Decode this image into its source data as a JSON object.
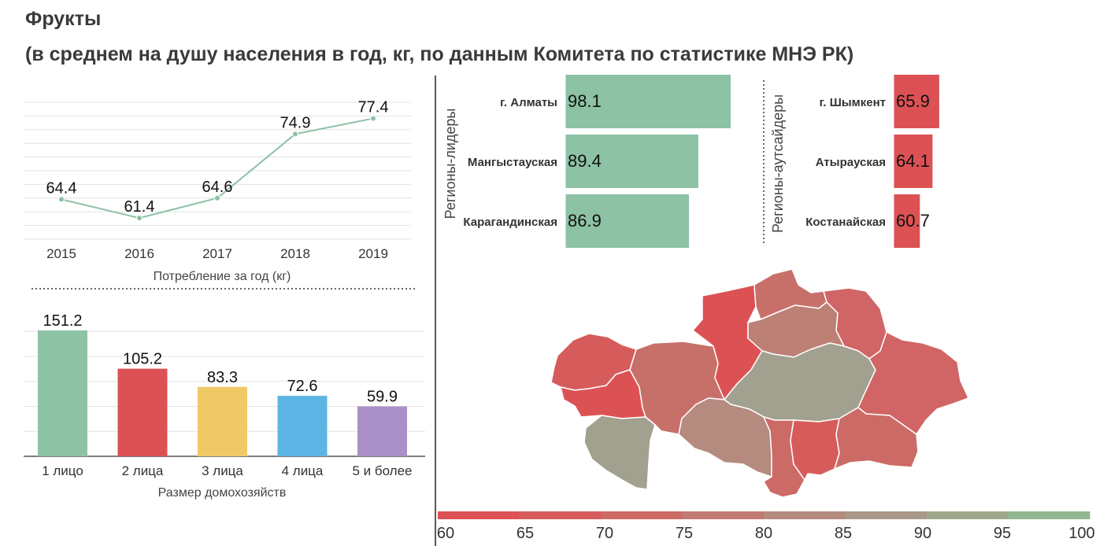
{
  "header": {
    "title": "Фрукты",
    "subtitle": "(в среднем на душу населения в год, кг, по данным Комитета по статистике МНЭ РК)"
  },
  "colors": {
    "green": "#8dc2a5",
    "red": "#dc5254",
    "yellow": "#efc966",
    "blue": "#5db5e5",
    "purple": "#a990c6",
    "line": "#8dc2a5",
    "map_gray": "#a2a08e"
  },
  "chart_data": [
    {
      "id": "yearly",
      "type": "line",
      "x": [
        "2015",
        "2016",
        "2017",
        "2018",
        "2019"
      ],
      "values": [
        64.4,
        61.4,
        64.6,
        74.9,
        77.4
      ],
      "labels": [
        "64.4",
        "61.4",
        "64.6",
        "74.9",
        "77.4"
      ],
      "xlabel": "Потребление за год (кг)",
      "ylim": [
        58,
        80
      ],
      "grid": true
    },
    {
      "id": "household",
      "type": "bar",
      "categories": [
        "1 лицо",
        "2 лица",
        "3 лица",
        "4 лица",
        "5 и более"
      ],
      "values": [
        151.2,
        105.2,
        83.3,
        72.6,
        59.9
      ],
      "labels": [
        "151.2",
        "105.2",
        "83.3",
        "72.6",
        "59.9"
      ],
      "colors": [
        "#8dc2a5",
        "#dc5254",
        "#efc966",
        "#5db5e5",
        "#a990c6"
      ],
      "xlabel": "Размер домохозяйств",
      "ylim": [
        0,
        170
      ],
      "grid": true
    },
    {
      "id": "leaders",
      "type": "bar",
      "orientation": "horizontal",
      "group_label": "Регионы-лидеры",
      "categories": [
        "г. Алматы",
        "Мангыстауская",
        "Карагандинская"
      ],
      "values": [
        98.1,
        89.4,
        86.9
      ],
      "labels": [
        "98.1",
        "89.4",
        "86.9"
      ],
      "color": "#8dc2a5",
      "xlim": [
        60,
        100
      ]
    },
    {
      "id": "outsiders",
      "type": "bar",
      "orientation": "horizontal",
      "group_label": "Регионы-аутсайдеры",
      "categories": [
        "г. Шымкент",
        "Атырауская",
        "Костанайская"
      ],
      "values": [
        65.9,
        64.1,
        60.7
      ],
      "labels": [
        "65.9",
        "64.1",
        "60.7"
      ],
      "color": "#dc5254",
      "xlim": [
        60,
        100
      ]
    }
  ],
  "map_legend": {
    "ticks": [
      "60",
      "65",
      "70",
      "75",
      "80",
      "85",
      "90",
      "95",
      "100"
    ],
    "colors": [
      "#dc5254",
      "#d65c5c",
      "#cc6a66",
      "#c17a73",
      "#b58a7f",
      "#a99888",
      "#9fa88c",
      "#94b793"
    ]
  }
}
